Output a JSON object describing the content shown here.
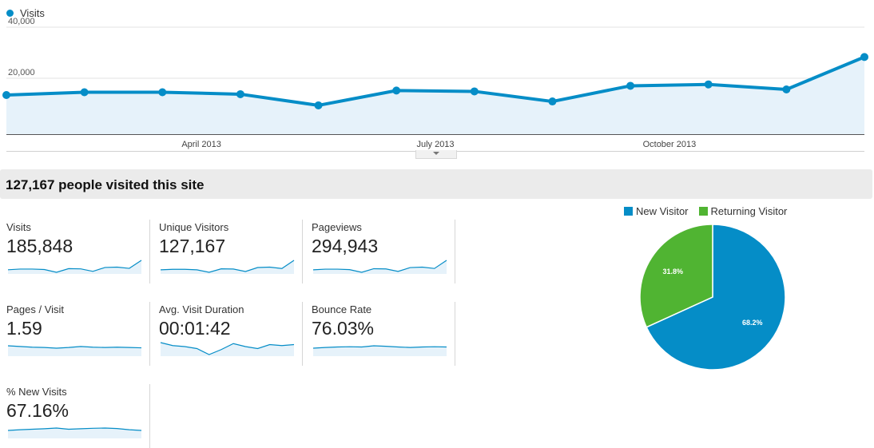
{
  "colors": {
    "accent": "#058dc7",
    "area_fill": "#e6f2fa",
    "new_visitor": "#058dc7",
    "returning_visitor": "#50b432",
    "summary_bg": "#ebebeb"
  },
  "chart_data": [
    {
      "type": "line",
      "series": [
        {
          "name": "Visits",
          "values": [
            14000,
            15000,
            15000,
            14300,
            10300,
            15600,
            15300,
            11700,
            17300,
            17800,
            16000,
            27600
          ]
        }
      ],
      "x": [
        "2013-01",
        "2013-02",
        "2013-03",
        "2013-04",
        "2013-05",
        "2013-06",
        "2013-07",
        "2013-08",
        "2013-09",
        "2013-10",
        "2013-11",
        "2013-12"
      ],
      "x_tick_labels": [
        "April 2013",
        "July 2013",
        "October 2013"
      ],
      "y_tick_labels": [
        "40,000",
        "20,000"
      ],
      "ylim": [
        0,
        40000
      ],
      "grid": true,
      "legend": "top-left"
    },
    {
      "type": "pie",
      "labels": [
        "New Visitor",
        "Returning Visitor"
      ],
      "values": [
        68.2,
        31.8
      ],
      "data_labels": [
        "68.2%",
        "31.8%"
      ],
      "legend": "top"
    }
  ],
  "summary": {
    "title": "127,167 people visited this site"
  },
  "metrics": [
    {
      "label": "Visits",
      "value": "185,848",
      "spark": [
        14,
        15,
        15,
        14.3,
        10.3,
        15.6,
        15.3,
        11.7,
        17.3,
        17.8,
        16,
        27.6
      ]
    },
    {
      "label": "Unique Visitors",
      "value": "127,167",
      "spark": [
        10,
        10.5,
        10.5,
        10,
        7.5,
        11,
        10.8,
        8.3,
        12.3,
        12.7,
        11.3,
        19.5
      ]
    },
    {
      "label": "Pageviews",
      "value": "294,943",
      "spark": [
        22,
        23.5,
        23.5,
        22.5,
        16.5,
        24.5,
        24,
        18.5,
        27,
        28,
        25,
        43
      ]
    },
    {
      "label": "Pages / Visit",
      "value": "1.59",
      "spark": [
        1.62,
        1.6,
        1.58,
        1.57,
        1.55,
        1.57,
        1.6,
        1.58,
        1.57,
        1.58,
        1.57,
        1.56
      ]
    },
    {
      "label": "Avg. Visit Duration",
      "value": "00:01:42",
      "spark": [
        104,
        101,
        100,
        98,
        92,
        97,
        103,
        100,
        98,
        102,
        101,
        102
      ]
    },
    {
      "label": "Bounce Rate",
      "value": "76.03%",
      "spark": [
        75.5,
        75.8,
        76,
        76.1,
        76,
        76.5,
        76.3,
        76,
        75.8,
        76,
        76.1,
        76
      ]
    },
    {
      "label": "% New Visits",
      "value": "67.16%",
      "spark": [
        66.5,
        66.8,
        67,
        67.2,
        67.5,
        67,
        67.2,
        67.4,
        67.5,
        67.3,
        66.8,
        66.5
      ]
    }
  ]
}
